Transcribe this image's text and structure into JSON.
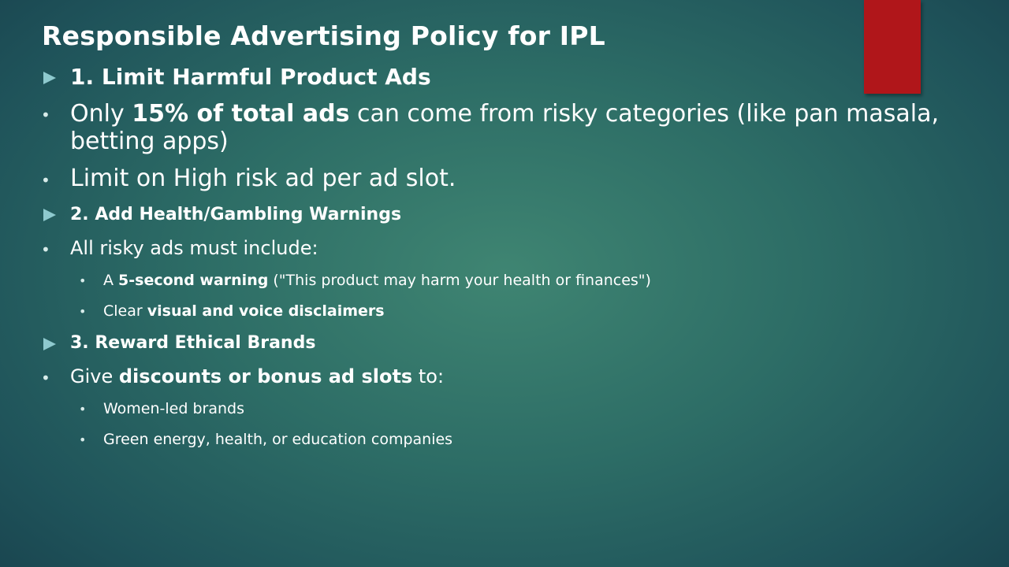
{
  "slide": {
    "title": "Responsible Advertising Policy for IPL",
    "sections": [
      {
        "heading": "1. Limit Harmful Product Ads",
        "bullets": [
          {
            "pre": "Only ",
            "bold": "15% of total ads",
            "post": " can come from risky categories (like pan masala,",
            "line2": "betting apps)"
          },
          {
            "text": "Limit on High risk ad per ad slot."
          }
        ]
      },
      {
        "heading": "2. Add Health/Gambling Warnings",
        "bullets": [
          {
            "text": "All risky ads must include:",
            "subbullets": [
              {
                "pre": "A ",
                "bold": "5-second warning",
                "post": " (\"This product may harm your health or finances\")"
              },
              {
                "pre": "Clear ",
                "bold": "visual and voice disclaimers",
                "post": ""
              }
            ]
          }
        ]
      },
      {
        "heading": "3. Reward Ethical Brands",
        "bullets": [
          {
            "pre": "Give ",
            "bold": "discounts or bonus ad slots",
            "post": " to:",
            "subbullets": [
              {
                "text": "Women-led brands"
              },
              {
                "text": "Green energy, health, or education companies"
              }
            ]
          }
        ]
      }
    ]
  },
  "colors": {
    "accent_bar": "#b0161a",
    "arrow": "#8ec9ce",
    "background_center": "#3f8572",
    "background_edge": "#173f4b"
  },
  "icons": {
    "section_marker": "triangle-right-icon",
    "bullet": "bullet-dot-icon"
  }
}
